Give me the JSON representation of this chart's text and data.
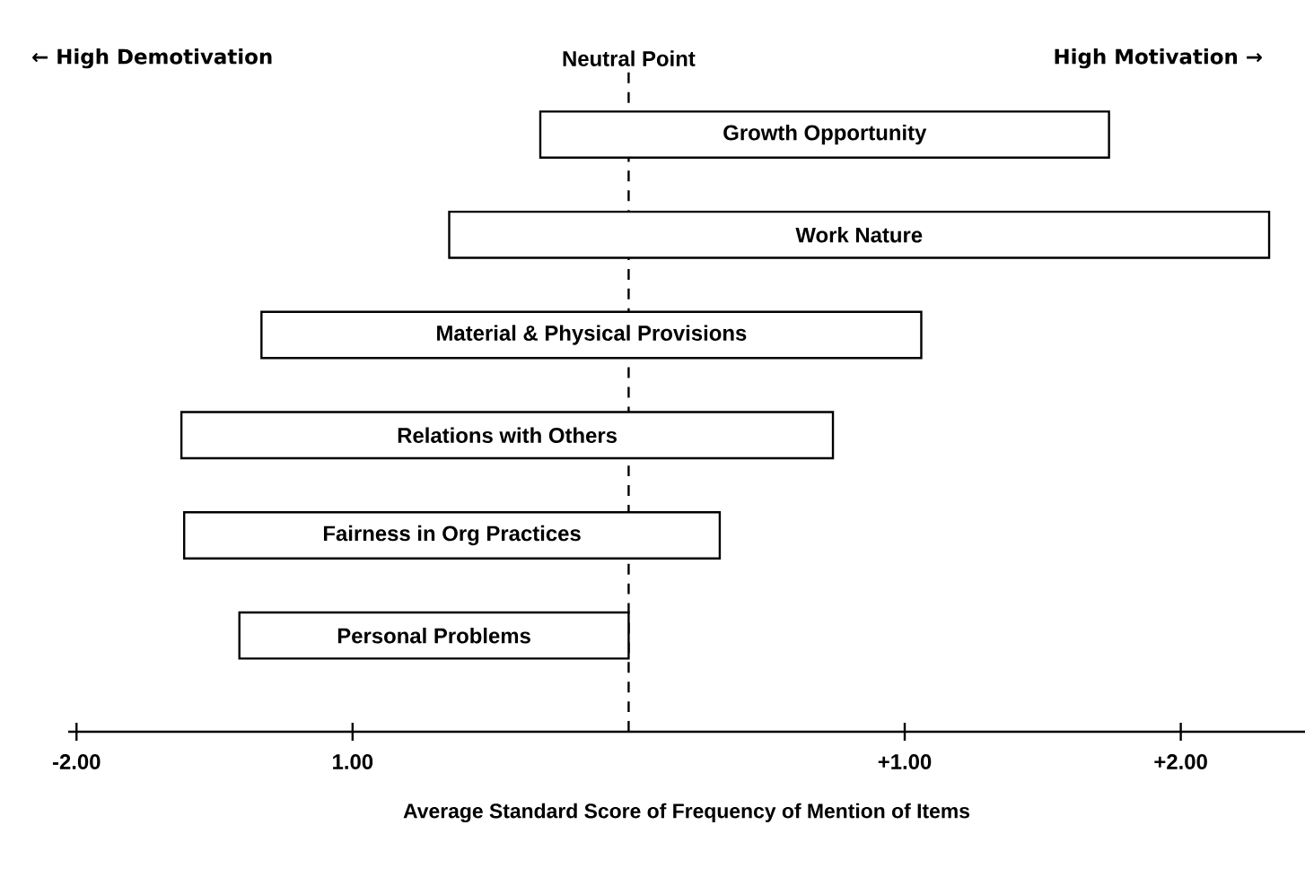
{
  "chart_data": {
    "type": "bar",
    "orientation": "horizontal",
    "xlabel": "Average Standard Score of Frequency of Mention of Items",
    "categories": [
      "Growth Opportunity",
      "Work Nature",
      "Material & Physical Provisions",
      "Relations with Others",
      "Fairness in Org  Practices",
      "Personal Problems"
    ],
    "base": [
      -0.32,
      -0.65,
      -1.33,
      -1.62,
      -1.61,
      -1.41
    ],
    "values": [
      2.06,
      2.97,
      2.39,
      2.36,
      1.94,
      1.41
    ],
    "color": "#ffffff",
    "xlim": [
      -2.03,
      2.45
    ],
    "xticks": [
      {
        "value": -2,
        "label": "-2.00"
      },
      {
        "value": -1,
        "label": "1.00"
      },
      {
        "value": 1,
        "label": "+1.00"
      },
      {
        "value": 2,
        "label": "+2.00"
      }
    ],
    "tick_labels": "x",
    "grid": false,
    "ref_lines": [
      {
        "axis": "x",
        "value": 0,
        "label": "Neutral Point",
        "line_style": "dashed"
      }
    ],
    "annotations": [
      "← High Demotivation",
      "High Motivation →"
    ]
  }
}
